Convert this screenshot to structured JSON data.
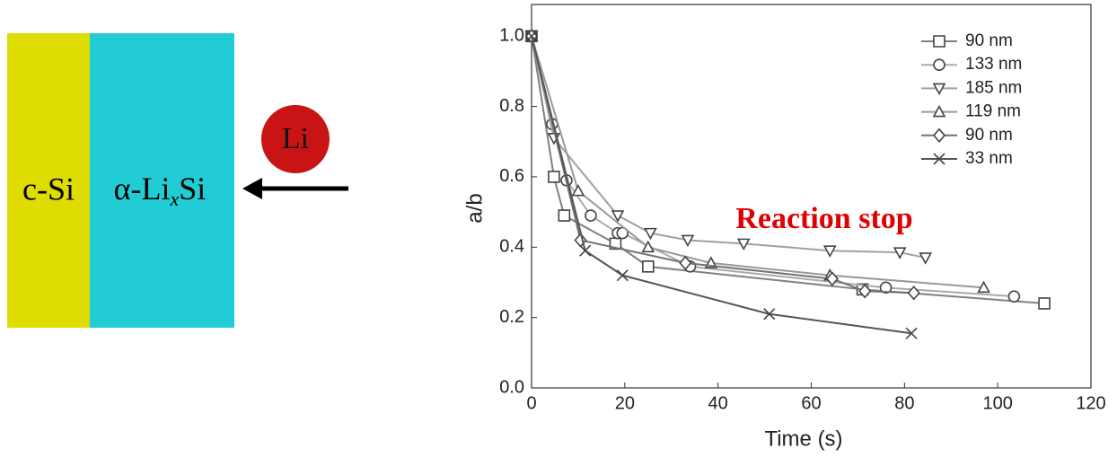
{
  "diagram": {
    "left_label": "c-Si",
    "right_label": [
      "α-Li",
      "x",
      "Si"
    ],
    "ion_label": "Li"
  },
  "chart_data": {
    "type": "line",
    "xlabel": "Time (s)",
    "ylabel": "a/b",
    "annotation": "Reaction stop",
    "xlim": [
      0,
      120
    ],
    "ylim": [
      0,
      1.09
    ],
    "xticks": [
      0,
      20,
      40,
      60,
      80,
      100,
      120
    ],
    "yticks": [
      {
        "value": 0,
        "label": "0.0"
      },
      0.2,
      0.4,
      0.6,
      0.8,
      {
        "value": 1,
        "label": "1.0"
      }
    ],
    "legend": "top-right",
    "series": [
      {
        "name": "90 nm",
        "marker": "square",
        "color": "#808080",
        "x": [
          0,
          4.8,
          7,
          18,
          25,
          71,
          110
        ],
        "values": [
          1.0,
          0.6,
          0.49,
          0.41,
          0.345,
          0.28,
          0.24
        ]
      },
      {
        "name": "133 nm",
        "marker": "circle",
        "color": "#aaaaaa",
        "x": [
          0,
          4.4,
          7.5,
          12.7,
          18.5,
          19.5,
          34,
          76,
          103.5
        ],
        "values": [
          1.0,
          0.75,
          0.59,
          0.49,
          0.44,
          0.44,
          0.345,
          0.285,
          0.26
        ]
      },
      {
        "name": "185 nm",
        "marker": "tri-down",
        "color": "#a0a0a0",
        "x": [
          0,
          4.8,
          18.5,
          25.5,
          33.5,
          45.5,
          64,
          79,
          84.5
        ],
        "values": [
          1.0,
          0.71,
          0.49,
          0.44,
          0.42,
          0.41,
          0.39,
          0.385,
          0.37
        ]
      },
      {
        "name": "119 nm",
        "marker": "tri-up",
        "color": "#999999",
        "x": [
          0,
          10,
          25,
          38.5,
          64,
          97
        ],
        "values": [
          1.0,
          0.56,
          0.4,
          0.355,
          0.32,
          0.285
        ]
      },
      {
        "name": "90 nm",
        "marker": "diamond",
        "color": "#707070",
        "x": [
          0,
          10.5,
          33,
          64.5,
          71.5,
          82
        ],
        "values": [
          1.0,
          0.42,
          0.355,
          0.31,
          0.275,
          0.27
        ]
      },
      {
        "name": "33 nm",
        "marker": "cross",
        "color": "#555555",
        "x": [
          0,
          11.5,
          19.5,
          51,
          81.5
        ],
        "values": [
          1.0,
          0.39,
          0.32,
          0.21,
          0.155
        ]
      }
    ]
  }
}
